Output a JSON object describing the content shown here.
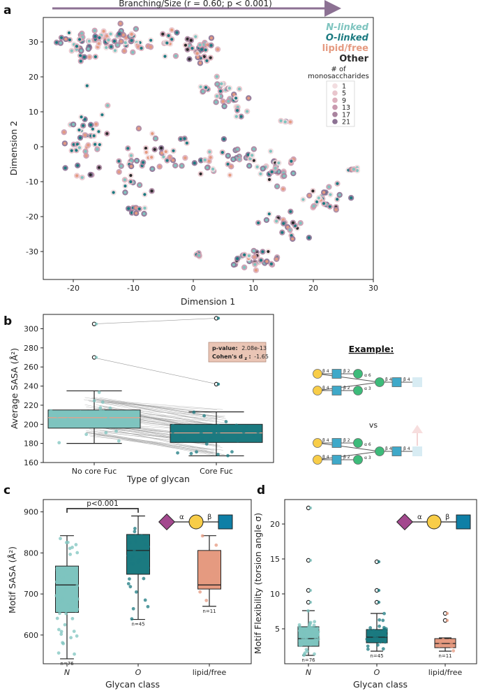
{
  "chart_data": [
    {
      "panel": "a",
      "type": "scatter",
      "arrow_label": "Branching/Size (r = 0.60; p < 0.001)",
      "xlabel": "Dimension 1",
      "ylabel": "Dimension 2",
      "xlim": [
        -25,
        30
      ],
      "ylim": [
        -38,
        37
      ],
      "xticks": [
        -20,
        -10,
        0,
        10,
        20,
        30
      ],
      "yticks": [
        -30,
        -20,
        -10,
        0,
        10,
        20,
        30
      ],
      "legend_classes": [
        {
          "label": "N-linked",
          "color": "#7ec4bf"
        },
        {
          "label": "O-linked",
          "color": "#1b7a80"
        },
        {
          "label": "lipid/free",
          "color": "#e59a80"
        },
        {
          "label": "Other",
          "color": "#2a2a2a"
        }
      ],
      "size_legend_title_1": "# of",
      "size_legend_title_2": "monosaccharides",
      "size_legend": [
        {
          "label": "1",
          "color": "#f2dde0"
        },
        {
          "label": "5",
          "color": "#e9c6cd"
        },
        {
          "label": "9",
          "color": "#ddb0bd"
        },
        {
          "label": "13",
          "color": "#c99aaf"
        },
        {
          "label": "17",
          "color": "#a9849f"
        },
        {
          "label": "21",
          "color": "#8c7193"
        }
      ],
      "clusters": [
        {
          "cx": -18,
          "cy": 30,
          "sx": 4,
          "sy": 3.5,
          "n": 45
        },
        {
          "cx": -11,
          "cy": 30,
          "sx": 3,
          "sy": 3.5,
          "n": 30
        },
        {
          "cx": -5,
          "cy": 30,
          "sx": 2.5,
          "sy": 3,
          "n": 12
        },
        {
          "cx": 1,
          "cy": 28,
          "sx": 3,
          "sy": 4,
          "n": 30
        },
        {
          "cx": 4,
          "cy": 16,
          "sx": 2,
          "sy": 3,
          "n": 18
        },
        {
          "cx": 7,
          "cy": 13,
          "sx": 2,
          "sy": 3,
          "n": 15
        },
        {
          "cx": -18,
          "cy": 2,
          "sx": 3,
          "sy": 8,
          "n": 40
        },
        {
          "cx": -10,
          "cy": -6,
          "sx": 3,
          "sy": 7,
          "n": 30
        },
        {
          "cx": -4,
          "cy": -2,
          "sx": 3,
          "sy": 4,
          "n": 18
        },
        {
          "cx": 3,
          "cy": -5,
          "sx": 3,
          "sy": 4,
          "n": 15
        },
        {
          "cx": 8,
          "cy": -3,
          "sx": 3,
          "sy": 3,
          "n": 20
        },
        {
          "cx": 14,
          "cy": -7,
          "sx": 3,
          "sy": 4,
          "n": 25
        },
        {
          "cx": 22,
          "cy": -14,
          "sx": 3,
          "sy": 3,
          "n": 25
        },
        {
          "cx": 15,
          "cy": -22,
          "sx": 3,
          "sy": 4,
          "n": 20
        },
        {
          "cx": 9,
          "cy": -32,
          "sx": 4,
          "sy": 2.5,
          "n": 30
        },
        {
          "cx": 15,
          "cy": 7,
          "sx": 1,
          "sy": 1,
          "n": 4
        },
        {
          "cx": 27,
          "cy": -7,
          "sx": 1,
          "sy": 1,
          "n": 5
        },
        {
          "cx": 1,
          "cy": -31,
          "sx": 1,
          "sy": 1,
          "n": 5
        },
        {
          "cx": -10,
          "cy": -18,
          "sx": 2,
          "sy": 1.5,
          "n": 10
        }
      ]
    },
    {
      "panel": "b",
      "type": "box",
      "xlabel": "Type of glycan",
      "ylabel": "Average SASA (Å²)",
      "ylim": [
        160,
        315
      ],
      "yticks": [
        160,
        180,
        200,
        220,
        240,
        260,
        280,
        300
      ],
      "categories": [
        "No core Fuc",
        "Core Fuc"
      ],
      "colors": [
        "#7ec4bf",
        "#1b7a80"
      ],
      "boxes": [
        {
          "whislo": 180,
          "q1": 196,
          "med": 207,
          "q3": 215,
          "whishi": 235,
          "outliers": [
            270,
            305
          ]
        },
        {
          "whislo": 167,
          "q1": 181,
          "med": 191,
          "q3": 200,
          "whishi": 213,
          "outliers": [
            242,
            311
          ]
        }
      ],
      "pvalue_label": "p-value:",
      "pvalue": "2.08e-13",
      "cohen_label": "Cohen's d",
      "cohen_sub": "z",
      "cohen_value": "-1.65",
      "n_pairs": 72
    },
    {
      "panel": "c",
      "type": "box",
      "xlabel": "Glycan class",
      "ylabel": "Motif SASA (Å²)",
      "ylim": [
        530,
        930
      ],
      "yticks": [
        600,
        700,
        800,
        900
      ],
      "categories": [
        "N",
        "O",
        "lipid/free"
      ],
      "colors": [
        "#7ec4bf",
        "#1b7a80",
        "#e59a80"
      ],
      "boxes": [
        {
          "whislo": 542,
          "q1": 655,
          "med": 722,
          "q3": 768,
          "whishi": 842,
          "outliers": [],
          "n": 76
        },
        {
          "whislo": 638,
          "q1": 748,
          "med": 806,
          "q3": 845,
          "whishi": 890,
          "outliers": [],
          "n": 45
        },
        {
          "whislo": 670,
          "q1": 712,
          "med": 722,
          "q3": 806,
          "whishi": 842,
          "outliers": [],
          "n": 11
        }
      ],
      "n_labels": [
        "n=76",
        "n=45",
        "n=11"
      ],
      "sig_label": "p<0.001",
      "motif_labels": [
        "α",
        "β"
      ]
    },
    {
      "panel": "d",
      "type": "box",
      "xlabel": "Glycan class",
      "ylabel": "Motif Flexibility (torsion angle σ)",
      "ylim": [
        0,
        23.5
      ],
      "yticks": [
        5,
        10,
        15,
        20
      ],
      "categories": [
        "N",
        "O",
        "lipid/free"
      ],
      "colors": [
        "#7ec4bf",
        "#1b7a80",
        "#e59a80"
      ],
      "boxes": [
        {
          "whislo": 1.2,
          "q1": 2.5,
          "med": 3.6,
          "q3": 5.3,
          "whishi": 7.6,
          "outliers": [
            8.8,
            10.5,
            14.8,
            22.3
          ],
          "n": 76
        },
        {
          "whislo": 1.8,
          "q1": 3.0,
          "med": 3.8,
          "q3": 4.9,
          "whishi": 7.2,
          "outliers": [
            8.8,
            10.5,
            14.6
          ],
          "n": 45
        },
        {
          "whislo": 1.8,
          "q1": 2.3,
          "med": 2.9,
          "q3": 3.6,
          "whishi": 3.7,
          "outliers": [
            6.2,
            7.2
          ],
          "n": 11
        }
      ],
      "n_labels": [
        "n=76",
        "n=45",
        "n=11"
      ],
      "motif_labels": [
        "α",
        "β"
      ]
    }
  ],
  "panel_letters": [
    "a",
    "b",
    "c",
    "d"
  ],
  "example": {
    "title": "Example:",
    "vs": "vs",
    "linkages": [
      "β 4",
      "β 2",
      "α 6",
      "α 3",
      "β 4",
      "β 4",
      "β 2"
    ]
  }
}
